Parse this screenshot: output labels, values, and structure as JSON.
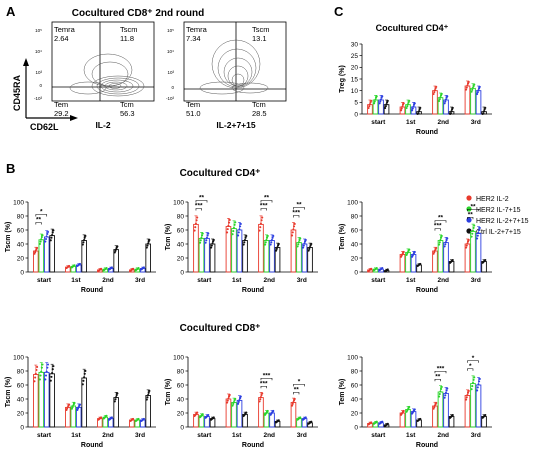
{
  "panel_letters": {
    "a": "A",
    "b": "B",
    "c": "C"
  },
  "titles": {
    "a": "Cocultured CD8⁺ 2nd round",
    "b_cd4": "Cocultured CD4⁺",
    "b_cd8": "Cocultured CD8⁺",
    "c": "Cocultured CD4⁺"
  },
  "flow": {
    "y_axis": "CD45RA",
    "x_axis": "CD62L",
    "plots": [
      {
        "label": "IL-2",
        "temra_name": "Temra",
        "temra": "2.64",
        "tscm_name": "Tscm",
        "tscm": "11.8",
        "tem_name": "Tem",
        "tem": "29.2",
        "tcm_name": "Tcm",
        "tcm": "56.3"
      },
      {
        "label": "IL-2+7+15",
        "temra_name": "Temra",
        "temra": "7.34",
        "tscm_name": "Tscm",
        "tscm": "13.1",
        "tem_name": "Tem",
        "tem": "51.0",
        "tcm_name": "Tcm",
        "tcm": "28.5"
      }
    ],
    "tick_labels": [
      "10⁵",
      "10⁴",
      "10³",
      "0",
      "-10³"
    ]
  },
  "legend": [
    {
      "name": "HER2 IL-2",
      "color": "#e8392c"
    },
    {
      "name": "HER2 IL-7+15",
      "color": "#2bd52b"
    },
    {
      "name": "HER2 IL-2+7+15",
      "color": "#2c3fe0"
    },
    {
      "name": "Ctrl IL-2+7+15",
      "color": "#111111"
    }
  ],
  "chart_data": [
    {
      "type": "bar",
      "id": "c_treg",
      "ylabel": "Treg (%)",
      "xlabel": "Round",
      "ylim": [
        0,
        30
      ],
      "yticks": [
        0,
        5,
        10,
        15,
        20,
        25,
        30
      ],
      "categories": [
        "start",
        "1st",
        "2nd",
        "3rd"
      ],
      "series": [
        {
          "name": "HER2 IL-2",
          "values": [
            4,
            3,
            10,
            12
          ]
        },
        {
          "name": "HER2 IL-7+15",
          "values": [
            6,
            4,
            7,
            11
          ]
        },
        {
          "name": "HER2 IL-2+7+15",
          "values": [
            6,
            3,
            6,
            10
          ]
        },
        {
          "name": "Ctrl IL-2+7+15",
          "values": [
            4,
            1,
            1,
            1
          ]
        }
      ],
      "sig": []
    },
    {
      "type": "bar",
      "id": "b4_tscm",
      "ylabel": "Tscm (%)",
      "xlabel": "Round",
      "ylim": [
        0,
        100
      ],
      "yticks": [
        0,
        20,
        40,
        60,
        80,
        100
      ],
      "categories": [
        "start",
        "1st",
        "2nd",
        "3rd"
      ],
      "series": [
        {
          "name": "HER2 IL-2",
          "values": [
            30,
            7,
            3,
            3
          ]
        },
        {
          "name": "HER2 IL-7+15",
          "values": [
            46,
            8,
            4,
            4
          ]
        },
        {
          "name": "HER2 IL-2+7+15",
          "values": [
            50,
            10,
            5,
            5
          ]
        },
        {
          "name": "Ctrl IL-2+7+15",
          "values": [
            52,
            45,
            32,
            40
          ]
        }
      ],
      "sig": [
        {
          "cat": 0,
          "from": 0,
          "to": 1,
          "label": "**"
        },
        {
          "cat": 0,
          "from": 0,
          "to": 2,
          "label": "*"
        }
      ]
    },
    {
      "type": "bar",
      "id": "b4_tcm",
      "ylabel": "Tcm (%)",
      "xlabel": "Round",
      "ylim": [
        0,
        100
      ],
      "yticks": [
        0,
        20,
        40,
        60,
        80,
        100
      ],
      "categories": [
        "start",
        "1st",
        "2nd",
        "3rd"
      ],
      "series": [
        {
          "name": "HER2 IL-2",
          "values": [
            68,
            65,
            68,
            60
          ]
        },
        {
          "name": "HER2 IL-7+15",
          "values": [
            48,
            62,
            45,
            42
          ]
        },
        {
          "name": "HER2 IL-2+7+15",
          "values": [
            48,
            60,
            45,
            40
          ]
        },
        {
          "name": "Ctrl IL-2+7+15",
          "values": [
            40,
            45,
            35,
            35
          ]
        }
      ],
      "sig": [
        {
          "cat": 0,
          "from": 0,
          "to": 1,
          "label": "***"
        },
        {
          "cat": 0,
          "from": 0,
          "to": 2,
          "label": "**"
        },
        {
          "cat": 2,
          "from": 0,
          "to": 1,
          "label": "***"
        },
        {
          "cat": 2,
          "from": 0,
          "to": 2,
          "label": "**"
        },
        {
          "cat": 3,
          "from": 0,
          "to": 1,
          "label": "***"
        },
        {
          "cat": 3,
          "from": 0,
          "to": 2,
          "label": "**"
        }
      ]
    },
    {
      "type": "bar",
      "id": "c_tem4",
      "ylabel": "Tem (%)",
      "xlabel": "Round",
      "ylim": [
        0,
        100
      ],
      "yticks": [
        0,
        20,
        40,
        60,
        80,
        100
      ],
      "categories": [
        "start",
        "1st",
        "2nd",
        "3rd"
      ],
      "series": [
        {
          "name": "HER2 IL-2",
          "values": [
            3,
            25,
            30,
            40
          ]
        },
        {
          "name": "HER2 IL-7+15",
          "values": [
            4,
            28,
            45,
            58
          ]
        },
        {
          "name": "HER2 IL-2+7+15",
          "values": [
            4,
            25,
            42,
            55
          ]
        },
        {
          "name": "Ctrl IL-2+7+15",
          "values": [
            2,
            10,
            15,
            15
          ]
        }
      ],
      "sig": [
        {
          "cat": 2,
          "from": 0,
          "to": 1,
          "label": "***"
        },
        {
          "cat": 2,
          "from": 0,
          "to": 2,
          "label": "**"
        },
        {
          "cat": 3,
          "from": 0,
          "to": 1,
          "label": "**"
        },
        {
          "cat": 3,
          "from": 0,
          "to": 2,
          "label": "**"
        }
      ]
    },
    {
      "type": "bar",
      "id": "b8_tscm",
      "ylabel": "Tscm (%)",
      "xlabel": "Round",
      "ylim": [
        0,
        100
      ],
      "yticks": [
        0,
        20,
        40,
        60,
        80,
        100
      ],
      "categories": [
        "start",
        "1st",
        "2nd",
        "3rd"
      ],
      "series": [
        {
          "name": "HER2 IL-2",
          "values": [
            75,
            28,
            12,
            10
          ]
        },
        {
          "name": "HER2 IL-7+15",
          "values": [
            78,
            30,
            14,
            10
          ]
        },
        {
          "name": "HER2 IL-2+7+15",
          "values": [
            78,
            28,
            12,
            10
          ]
        },
        {
          "name": "Ctrl IL-2+7+15",
          "values": [
            76,
            70,
            42,
            45
          ]
        }
      ],
      "sig": []
    },
    {
      "type": "bar",
      "id": "b8_tcm",
      "ylabel": "Tcm (%)",
      "xlabel": "Round",
      "ylim": [
        0,
        100
      ],
      "yticks": [
        0,
        20,
        40,
        60,
        80,
        100
      ],
      "categories": [
        "start",
        "1st",
        "2nd",
        "3rd"
      ],
      "series": [
        {
          "name": "HER2 IL-2",
          "values": [
            18,
            40,
            42,
            35
          ]
        },
        {
          "name": "HER2 IL-7+15",
          "values": [
            16,
            35,
            20,
            12
          ]
        },
        {
          "name": "HER2 IL-2+7+15",
          "values": [
            15,
            38,
            20,
            12
          ]
        },
        {
          "name": "Ctrl IL-2+7+15",
          "values": [
            12,
            18,
            8,
            6
          ]
        }
      ],
      "sig": [
        {
          "cat": 2,
          "from": 0,
          "to": 1,
          "label": "***"
        },
        {
          "cat": 2,
          "from": 0,
          "to": 2,
          "label": "***"
        },
        {
          "cat": 3,
          "from": 0,
          "to": 1,
          "label": "**"
        },
        {
          "cat": 3,
          "from": 0,
          "to": 2,
          "label": "*"
        }
      ]
    },
    {
      "type": "bar",
      "id": "c_tem8",
      "ylabel": "Tem (%)",
      "xlabel": "Round",
      "ylim": [
        0,
        100
      ],
      "yticks": [
        0,
        20,
        40,
        60,
        80,
        100
      ],
      "categories": [
        "start",
        "1st",
        "2nd",
        "3rd"
      ],
      "series": [
        {
          "name": "HER2 IL-2",
          "values": [
            5,
            20,
            30,
            45
          ]
        },
        {
          "name": "HER2 IL-7+15",
          "values": [
            6,
            25,
            50,
            62
          ]
        },
        {
          "name": "HER2 IL-2+7+15",
          "values": [
            6,
            22,
            48,
            60
          ]
        },
        {
          "name": "Ctrl IL-2+7+15",
          "values": [
            3,
            10,
            15,
            15
          ]
        }
      ],
      "sig": [
        {
          "cat": 2,
          "from": 0,
          "to": 1,
          "label": "**"
        },
        {
          "cat": 2,
          "from": 0,
          "to": 2,
          "label": "***"
        },
        {
          "cat": 3,
          "from": 0,
          "to": 1,
          "label": "*"
        },
        {
          "cat": 3,
          "from": 0,
          "to": 2,
          "label": "*"
        }
      ]
    }
  ]
}
